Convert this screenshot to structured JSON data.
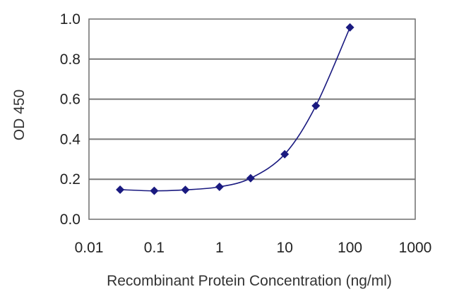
{
  "chart_data": {
    "type": "line",
    "title": "",
    "xlabel": "Recombinant Protein Concentration (ng/ml)",
    "ylabel": "OD 450",
    "x_scale": "log",
    "xlim": [
      0.01,
      1000
    ],
    "ylim": [
      0,
      1.0
    ],
    "x_ticks": [
      "0.01",
      "0.1",
      "1",
      "10",
      "100",
      "1000"
    ],
    "y_ticks": [
      "0.0",
      "0.2",
      "0.4",
      "0.6",
      "0.8",
      "1.0"
    ],
    "grid": "horizontal",
    "legend": "none",
    "series": [
      {
        "x": [
          0.03,
          0.1,
          0.3,
          1,
          3,
          10,
          30,
          100
        ],
        "y": [
          0.148,
          0.142,
          0.147,
          0.162,
          0.205,
          0.325,
          0.567,
          0.958
        ],
        "color": "#1a1a80",
        "marker": "diamond"
      }
    ]
  }
}
